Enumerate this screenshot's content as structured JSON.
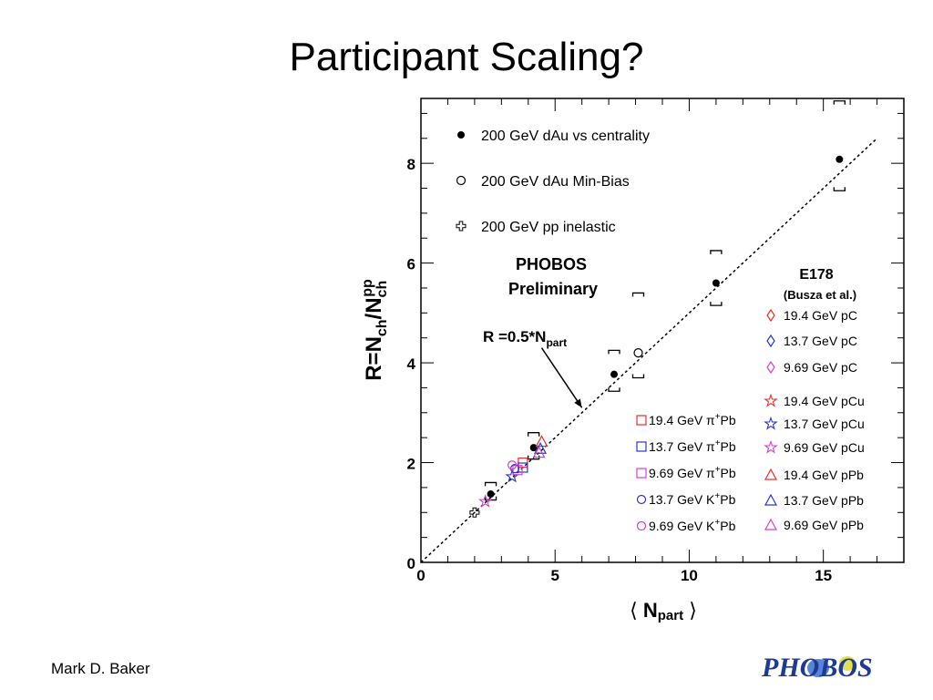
{
  "slide": {
    "title": "Participant Scaling?",
    "author": "Mark D. Baker",
    "logo_text": "PHOBOS"
  },
  "chart_data": {
    "type": "scatter",
    "xlim": [
      0,
      18
    ],
    "ylim": [
      0,
      9.3
    ],
    "xticks": [
      0,
      5,
      10,
      15
    ],
    "yticks": [
      0,
      2,
      4,
      6,
      8
    ],
    "xlabel": "Npart",
    "ylabel": "R=Nch/Nch^pp",
    "grid": false,
    "annotations": {
      "experiment": "PHOBOS",
      "status": "Preliminary",
      "fit_label": "R =0.5*N",
      "fit_label_sub": "part",
      "fit_line": {
        "label": "R =0.5*Npart",
        "x": [
          0,
          17
        ],
        "y": [
          0,
          8.5
        ]
      },
      "arrow_from": [
        4.5,
        4.3
      ],
      "arrow_to": [
        6.0,
        3.1
      ]
    },
    "e178_header": "E178",
    "e178_ref": "(Busza et al.)",
    "series": [
      {
        "name": "200 GeV dAu vs centrality",
        "marker": "filled-circle",
        "color": "#000000",
        "points": [
          [
            2.6,
            1.37
          ],
          [
            4.2,
            2.3
          ],
          [
            7.2,
            3.77
          ],
          [
            11.0,
            5.6
          ],
          [
            15.6,
            8.08
          ]
        ],
        "error_low": [
          1.25,
          2.07,
          3.43,
          5.15,
          7.45
        ],
        "error_high": [
          1.6,
          2.6,
          4.25,
          6.25,
          9.25
        ]
      },
      {
        "name": "200 GeV dAu  Min-Bias",
        "marker": "open-circle",
        "color": "#000000",
        "points": [
          [
            8.1,
            4.2
          ]
        ],
        "error_low": [
          3.7
        ],
        "error_high": [
          5.4
        ]
      },
      {
        "name": "200 GeV pp inelastic",
        "marker": "open-cross",
        "color": "#000000",
        "points": [
          [
            2.0,
            1.0
          ]
        ]
      },
      {
        "name": "19.4 GeV pC",
        "marker": "diamond",
        "color": "#e8302a",
        "points": []
      },
      {
        "name": "13.7 GeV pC",
        "marker": "diamond",
        "color": "#2b35c9",
        "points": []
      },
      {
        "name": "9.69 GeV pC",
        "marker": "diamond",
        "color": "#d43fd4",
        "points": []
      },
      {
        "name": "19.4 GeV pCu",
        "marker": "star",
        "color": "#e8302a",
        "points": []
      },
      {
        "name": "13.7 GeV pCu",
        "marker": "star",
        "color": "#2b35c9",
        "points": [
          [
            3.4,
            1.72
          ]
        ]
      },
      {
        "name": "9.69 GeV pCu",
        "marker": "star",
        "color": "#d43fd4",
        "points": [
          [
            2.4,
            1.22
          ]
        ]
      },
      {
        "name": "19.4 GeV pPb",
        "marker": "triangle",
        "color": "#e8302a",
        "points": [
          [
            4.5,
            2.42
          ]
        ]
      },
      {
        "name": "13.7 GeV pPb",
        "marker": "triangle",
        "color": "#2b35c9",
        "points": [
          [
            4.45,
            2.28
          ]
        ]
      },
      {
        "name": "9.69 GeV pPb",
        "marker": "triangle",
        "color": "#d43fd4",
        "points": [
          [
            4.4,
            2.2
          ]
        ]
      },
      {
        "name": "19.4 GeV π+Pb",
        "marker": "square",
        "color": "#e8302a",
        "points": [
          [
            3.8,
            2.0
          ]
        ]
      },
      {
        "name": "13.7 GeV π+Pb",
        "marker": "square",
        "color": "#2b35c9",
        "points": [
          [
            3.8,
            1.9
          ]
        ]
      },
      {
        "name": "9.69 GeV π+Pb",
        "marker": "square",
        "color": "#d43fd4",
        "points": [
          [
            3.6,
            1.85
          ]
        ]
      },
      {
        "name": "13.7 GeV K+Pb",
        "marker": "open-circle",
        "color": "#2b35c9",
        "points": [
          [
            3.5,
            1.88
          ]
        ]
      },
      {
        "name": "9.69 GeV K+Pb",
        "marker": "open-circle",
        "color": "#d43fd4",
        "points": [
          [
            3.4,
            1.95
          ]
        ]
      }
    ],
    "legend_black": [
      {
        "marker": "filled-circle",
        "label": "200 GeV dAu vs centrality"
      },
      {
        "marker": "open-circle",
        "label": "200 GeV dAu  Min-Bias"
      },
      {
        "marker": "open-cross",
        "label": "200 GeV pp inelastic"
      }
    ],
    "legend_left": [
      {
        "marker": "square",
        "color": "#e8302a",
        "text": "19.4 GeV π",
        "sup": "+",
        "tail": "Pb"
      },
      {
        "marker": "square",
        "color": "#2b35c9",
        "text": "13.7 GeV π",
        "sup": "+",
        "tail": "Pb"
      },
      {
        "marker": "square",
        "color": "#d43fd4",
        "text": "9.69 GeV π",
        "sup": "+",
        "tail": "Pb"
      },
      {
        "marker": "circle",
        "color": "#2b35c9",
        "text": "13.7 GeV K",
        "sup": "+",
        "tail": "Pb"
      },
      {
        "marker": "circle",
        "color": "#d43fd4",
        "text": "9.69 GeV K",
        "sup": "+",
        "tail": "Pb"
      }
    ],
    "legend_right": [
      {
        "marker": "diamond",
        "color": "#e8302a",
        "label": "19.4 GeV pC"
      },
      {
        "marker": "diamond",
        "color": "#2b35c9",
        "label": "13.7 GeV pC"
      },
      {
        "marker": "diamond",
        "color": "#d43fd4",
        "label": "9.69 GeV pC"
      },
      {
        "marker": "star",
        "color": "#e8302a",
        "label": "19.4 GeV pCu"
      },
      {
        "marker": "star",
        "color": "#2b35c9",
        "label": "13.7 GeV pCu"
      },
      {
        "marker": "star",
        "color": "#d43fd4",
        "label": "9.69 GeV pCu"
      },
      {
        "marker": "triangle",
        "color": "#e8302a",
        "label": "19.4 GeV pPb"
      },
      {
        "marker": "triangle",
        "color": "#2b35c9",
        "label": "13.7 GeV pPb"
      },
      {
        "marker": "triangle",
        "color": "#d43fd4",
        "label": "9.69 GeV pPb"
      }
    ]
  }
}
